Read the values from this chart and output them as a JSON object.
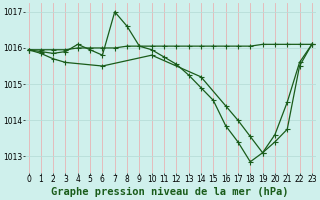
{
  "title": "Graphe pression niveau de la mer (hPa)",
  "background_color": "#cff0ec",
  "grid_color_v": "#e8b4b4",
  "grid_color_h": "#b8ddd8",
  "line_color": "#1a5c1a",
  "xlim": [
    -0.3,
    23.3
  ],
  "ylim": [
    1012.55,
    1017.25
  ],
  "yticks": [
    1013,
    1014,
    1015,
    1016,
    1017
  ],
  "xticks": [
    0,
    1,
    2,
    3,
    4,
    5,
    6,
    7,
    8,
    9,
    10,
    11,
    12,
    13,
    14,
    15,
    16,
    17,
    18,
    19,
    20,
    21,
    22,
    23
  ],
  "line1_x": [
    0,
    1,
    2,
    3,
    4,
    5,
    6,
    7,
    8,
    9,
    10,
    11,
    12,
    13,
    14,
    15,
    16,
    17,
    18,
    19,
    20,
    21,
    22,
    23
  ],
  "line1_y": [
    1015.95,
    1015.95,
    1015.95,
    1015.95,
    1016.0,
    1016.0,
    1016.0,
    1016.0,
    1016.05,
    1016.05,
    1016.05,
    1016.05,
    1016.05,
    1016.05,
    1016.05,
    1016.05,
    1016.05,
    1016.05,
    1016.05,
    1016.1,
    1016.1,
    1016.1,
    1016.1,
    1016.1
  ],
  "line2_x": [
    0,
    1,
    2,
    3,
    4,
    5,
    6,
    7,
    8,
    9,
    10,
    11,
    12,
    13,
    14,
    15,
    16,
    17,
    18,
    19,
    20,
    21,
    22,
    23
  ],
  "line2_y": [
    1015.95,
    1015.9,
    1015.85,
    1015.9,
    1016.1,
    1015.95,
    1015.8,
    1017.0,
    1016.6,
    1016.05,
    1015.95,
    1015.75,
    1015.55,
    1015.25,
    1014.9,
    1014.55,
    1013.85,
    1013.4,
    1012.85,
    1013.1,
    1013.6,
    1014.5,
    1015.6,
    1016.1
  ],
  "line3_x": [
    0,
    1,
    2,
    3,
    6,
    10,
    14,
    16,
    17,
    18,
    19,
    20,
    21,
    22,
    23
  ],
  "line3_y": [
    1015.95,
    1015.85,
    1015.7,
    1015.6,
    1015.5,
    1015.8,
    1015.2,
    1014.4,
    1014.0,
    1013.55,
    1013.1,
    1013.4,
    1013.75,
    1015.5,
    1016.1
  ],
  "title_fontsize": 7.5,
  "tick_fontsize": 5.5
}
